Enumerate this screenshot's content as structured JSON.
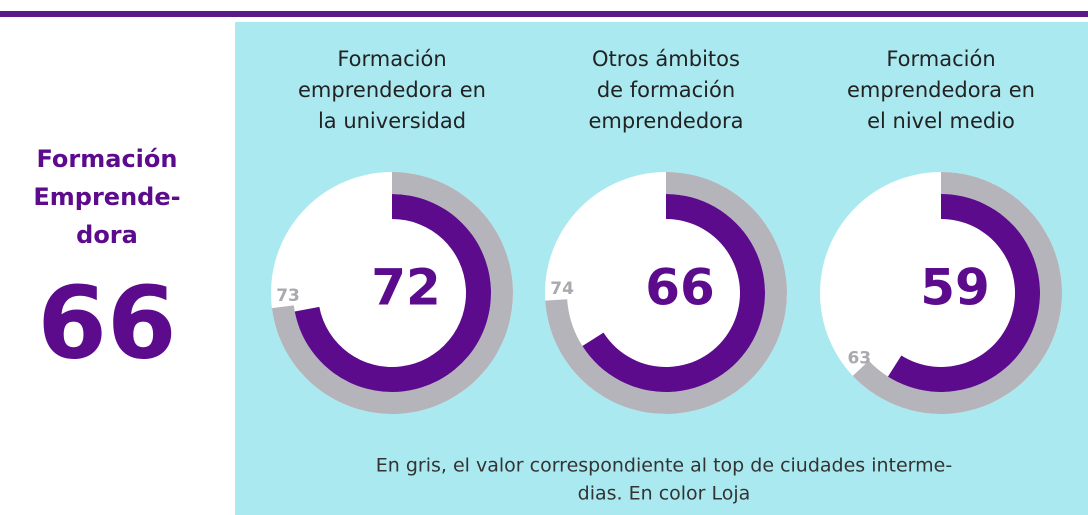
{
  "chart_data": {
    "type": "radial-gauge",
    "title_lines": [
      "Formación",
      "Emprende-",
      "dora"
    ],
    "overall": 66,
    "ylim": [
      0,
      100
    ],
    "value_color": "#5b0b8c",
    "reference_color": "#b4b4ba",
    "gauges": [
      {
        "title_lines": [
          "Formación",
          "emprendedora en",
          "la universidad"
        ],
        "value": 72,
        "reference": 73
      },
      {
        "title_lines": [
          "Otros ámbitos",
          "de formación",
          "emprendedora"
        ],
        "value": 66,
        "reference": 74
      },
      {
        "title_lines": [
          "Formación",
          "emprendedora en",
          "el nivel medio"
        ],
        "value": 59,
        "reference": 63
      }
    ],
    "note_lines": [
      "En gris, el valor correspondiente al top de ciudades interme-",
      "dias. En color Loja"
    ]
  }
}
